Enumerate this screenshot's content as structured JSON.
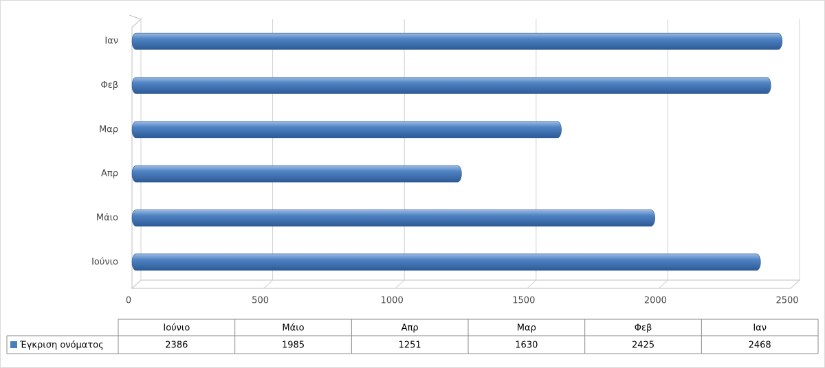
{
  "chart_data": {
    "type": "bar",
    "orientation": "horizontal",
    "categories": [
      "Ιούνιο",
      "Μάιο",
      "Απρ",
      "Μαρ",
      "Φεβ",
      "Ιαν"
    ],
    "series": [
      {
        "name": "Έγκριση ονόματος",
        "color": "#4a7ebb",
        "values": [
          2386,
          1985,
          1251,
          1630,
          2425,
          2468
        ]
      }
    ],
    "xlim": [
      0,
      2500
    ],
    "xticks": [
      0,
      500,
      1000,
      1500,
      2000,
      2500
    ],
    "grid": true,
    "data_table": true
  }
}
